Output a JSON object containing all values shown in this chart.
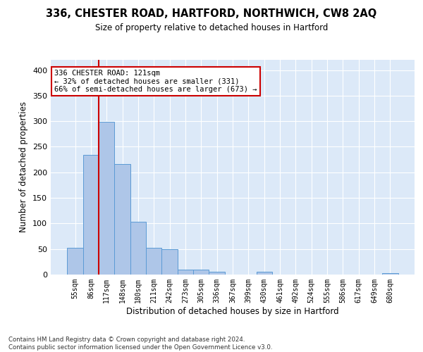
{
  "title_line1": "336, CHESTER ROAD, HARTFORD, NORTHWICH, CW8 2AQ",
  "title_line2": "Size of property relative to detached houses in Hartford",
  "xlabel": "Distribution of detached houses by size in Hartford",
  "ylabel": "Number of detached properties",
  "footnote": "Contains HM Land Registry data © Crown copyright and database right 2024.\nContains public sector information licensed under the Open Government Licence v3.0.",
  "categories": [
    "55sqm",
    "86sqm",
    "117sqm",
    "148sqm",
    "180sqm",
    "211sqm",
    "242sqm",
    "273sqm",
    "305sqm",
    "336sqm",
    "367sqm",
    "399sqm",
    "430sqm",
    "461sqm",
    "492sqm",
    "524sqm",
    "555sqm",
    "586sqm",
    "617sqm",
    "649sqm",
    "680sqm"
  ],
  "values": [
    52,
    234,
    299,
    216,
    103,
    52,
    49,
    10,
    10,
    6,
    0,
    0,
    5,
    0,
    0,
    0,
    0,
    0,
    0,
    0,
    3
  ],
  "bar_color": "#aec6e8",
  "bar_edge_color": "#5b9bd5",
  "bg_color": "#dce9f8",
  "grid_color": "#ffffff",
  "vline_color": "#cc0000",
  "annotation_text": "336 CHESTER ROAD: 121sqm\n← 32% of detached houses are smaller (331)\n66% of semi-detached houses are larger (673) →",
  "annotation_box_color": "#ffffff",
  "annotation_box_edge": "#cc0000",
  "ylim": [
    0,
    420
  ],
  "yticks": [
    0,
    50,
    100,
    150,
    200,
    250,
    300,
    350,
    400
  ]
}
